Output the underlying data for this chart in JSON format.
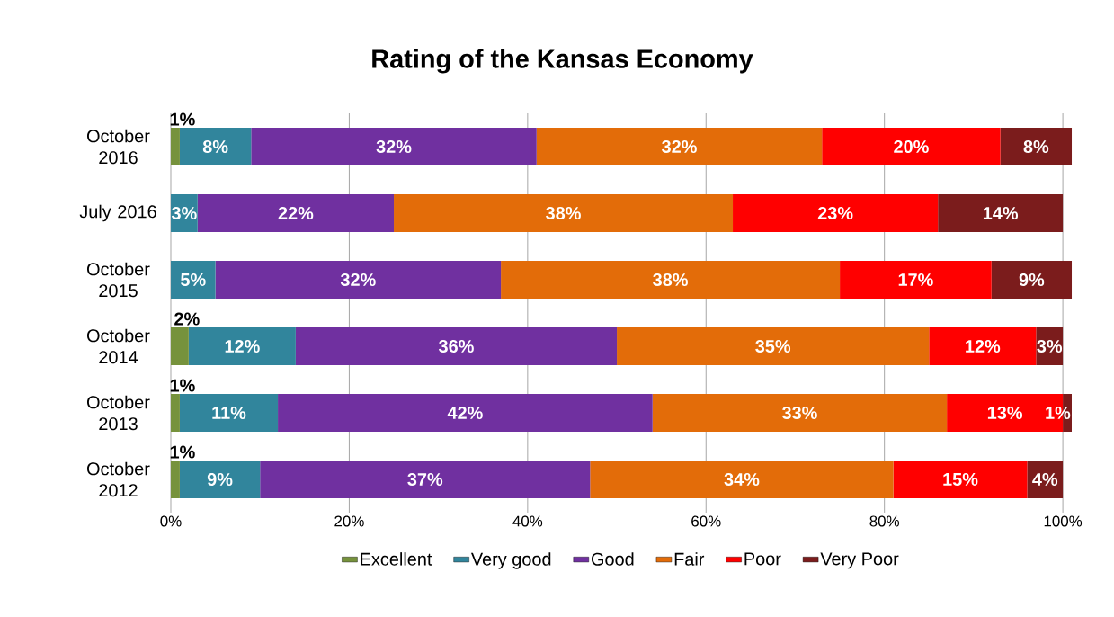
{
  "chart_data": {
    "type": "bar",
    "orientation": "horizontal",
    "stacked": true,
    "title": "Rating of the Kansas Economy",
    "categories": [
      "October 2016",
      "July 2016",
      "October 2015",
      "October 2014",
      "October 2013",
      "October 2012"
    ],
    "series": [
      {
        "name": "Excellent",
        "color": "#76923c",
        "values": [
          1,
          0,
          0,
          2,
          1,
          1
        ],
        "value_labels": [
          "1%",
          null,
          null,
          "2%",
          "1%",
          "1%"
        ]
      },
      {
        "name": "Very good",
        "color": "#31859c",
        "values": [
          8,
          3,
          5,
          12,
          11,
          9
        ],
        "value_labels": [
          "8%",
          "3%",
          "5%",
          "12%",
          "11%",
          "9%"
        ]
      },
      {
        "name": "Good",
        "color": "#7030a0",
        "values": [
          32,
          22,
          32,
          36,
          42,
          37
        ],
        "value_labels": [
          "32%",
          "22%",
          "32%",
          "36%",
          "42%",
          "37%"
        ]
      },
      {
        "name": "Fair",
        "color": "#e36c09",
        "values": [
          32,
          38,
          38,
          35,
          33,
          34
        ],
        "value_labels": [
          "32%",
          "38%",
          "38%",
          "35%",
          "33%",
          "34%"
        ]
      },
      {
        "name": "Poor",
        "color": "#ff0000",
        "values": [
          20,
          23,
          17,
          12,
          13,
          15
        ],
        "value_labels": [
          "20%",
          "23%",
          "17%",
          "12%",
          "13%",
          "15%"
        ]
      },
      {
        "name": "Very Poor",
        "color": "#7b1c1c",
        "values": [
          8,
          14,
          9,
          3,
          1,
          4
        ],
        "value_labels": [
          "8%",
          "14%",
          "9%",
          "3%",
          "1%",
          "4%"
        ]
      }
    ],
    "xlim": [
      0,
      101
    ],
    "xticks": [
      {
        "value": 0,
        "label": "0%"
      },
      {
        "value": 20,
        "label": "20%"
      },
      {
        "value": 40,
        "label": "40%"
      },
      {
        "value": 60,
        "label": "60%"
      },
      {
        "value": 80,
        "label": "80%"
      },
      {
        "value": 100,
        "label": "100%"
      }
    ],
    "grid": "x",
    "legend": "bottom"
  }
}
